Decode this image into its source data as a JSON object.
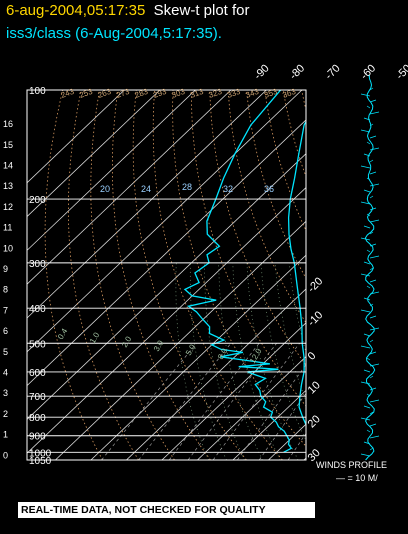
{
  "header": {
    "date_time": "6-aug-2004,05:17:35",
    "plot_title": "Skew-t plot for",
    "subtitle": "iss3/class (6-Aug-2004,5:17:35)."
  },
  "footer": {
    "warning": "REAL-TIME DATA, NOT CHECKED FOR QUALITY",
    "winds_profile": "WINDS PROFILE",
    "wind_scale": "— = 10 M/"
  },
  "colors": {
    "background": "#000000",
    "date_text": "#ffd700",
    "profile": "#00e5ff",
    "grid": "#ffffff",
    "height_labels": "#c8a070"
  },
  "chart_data": {
    "type": "line",
    "pressure_levels": [
      100,
      200,
      300,
      400,
      500,
      600,
      700,
      800,
      900,
      1000,
      1050
    ],
    "pressure_labels": [
      "100",
      "200",
      "300",
      "400",
      "500",
      "600",
      "700",
      "800",
      "900",
      "1000",
      "1050"
    ],
    "height_km_ticks": [
      "0",
      "1",
      "2",
      "3",
      "4",
      "5",
      "6",
      "7",
      "8",
      "9",
      "10",
      "11",
      "12",
      "13",
      "14",
      "15",
      "16"
    ],
    "height_km_values": [
      0,
      1,
      2,
      3,
      4,
      5,
      6,
      7,
      8,
      9,
      10,
      11,
      12,
      13,
      14,
      15,
      16
    ],
    "top_temp_labels": [
      "-90",
      "-80",
      "-70",
      "-60",
      "-50",
      "-40",
      "-30"
    ],
    "top_temp_values": [
      -90,
      -80,
      -70,
      -60,
      -50,
      -40,
      -30
    ],
    "right_temp_labels": [
      "-20",
      "-10",
      "0",
      "10",
      "20",
      "30"
    ],
    "right_temp_values": [
      -20,
      -10,
      0,
      10,
      20,
      30
    ],
    "mixing_ratio_labels": [
      "20",
      "24",
      "28",
      "32",
      "36"
    ],
    "dry_adiabat_labels": [
      "243",
      "253",
      "263",
      "273",
      "283",
      "293",
      "303",
      "313",
      "323",
      "333",
      "343",
      "353",
      "363",
      "373",
      "383",
      "393",
      "403",
      "413",
      "423",
      "433",
      "443",
      "453"
    ],
    "moist_adiabat_labels": [
      "0.4",
      "1.0",
      "2.0",
      "3.0",
      "5.0",
      "8.0",
      "12.0"
    ],
    "series": [
      {
        "name": "temperature",
        "points": [
          [
            1000,
            31
          ],
          [
            975,
            29
          ],
          [
            950,
            28
          ],
          [
            925,
            27
          ],
          [
            900,
            25
          ],
          [
            875,
            23
          ],
          [
            850,
            21
          ],
          [
            800,
            17
          ],
          [
            750,
            13
          ],
          [
            700,
            10
          ],
          [
            650,
            7
          ],
          [
            600,
            4
          ],
          [
            550,
            0
          ],
          [
            500,
            -5
          ],
          [
            450,
            -10
          ],
          [
            400,
            -16
          ],
          [
            350,
            -23
          ],
          [
            300,
            -31
          ],
          [
            275,
            -36
          ],
          [
            250,
            -41
          ],
          [
            225,
            -46
          ],
          [
            200,
            -51
          ],
          [
            175,
            -56
          ],
          [
            150,
            -62
          ],
          [
            125,
            -69
          ],
          [
            100,
            -74
          ]
        ]
      },
      {
        "name": "dewpoint",
        "points": [
          [
            1000,
            22
          ],
          [
            975,
            23
          ],
          [
            950,
            21
          ],
          [
            925,
            20
          ],
          [
            900,
            18
          ],
          [
            875,
            16
          ],
          [
            850,
            13
          ],
          [
            825,
            11
          ],
          [
            800,
            8
          ],
          [
            775,
            7
          ],
          [
            750,
            3
          ],
          [
            725,
            2
          ],
          [
            700,
            -1
          ],
          [
            675,
            -3
          ],
          [
            650,
            -6
          ],
          [
            625,
            -5
          ],
          [
            600,
            -12
          ],
          [
            590,
            -4
          ],
          [
            580,
            -16
          ],
          [
            570,
            -8
          ],
          [
            560,
            -14
          ],
          [
            545,
            -24
          ],
          [
            530,
            -19
          ],
          [
            520,
            -26
          ],
          [
            505,
            -30
          ],
          [
            490,
            -28
          ],
          [
            470,
            -34
          ],
          [
            450,
            -36
          ],
          [
            430,
            -40
          ],
          [
            410,
            -44
          ],
          [
            395,
            -48
          ],
          [
            380,
            -42
          ],
          [
            370,
            -50
          ],
          [
            355,
            -54
          ],
          [
            340,
            -52
          ],
          [
            320,
            -56
          ],
          [
            300,
            -55
          ],
          [
            285,
            -58
          ],
          [
            270,
            -57
          ],
          [
            250,
            -64
          ],
          [
            230,
            -68
          ],
          [
            200,
            -72
          ],
          [
            175,
            -76
          ],
          [
            150,
            -80
          ],
          [
            125,
            -84
          ],
          [
            100,
            -86
          ]
        ]
      }
    ],
    "ylim": [
      1050,
      100
    ],
    "y_scale": "log-pressure",
    "skew": "skew-T"
  }
}
